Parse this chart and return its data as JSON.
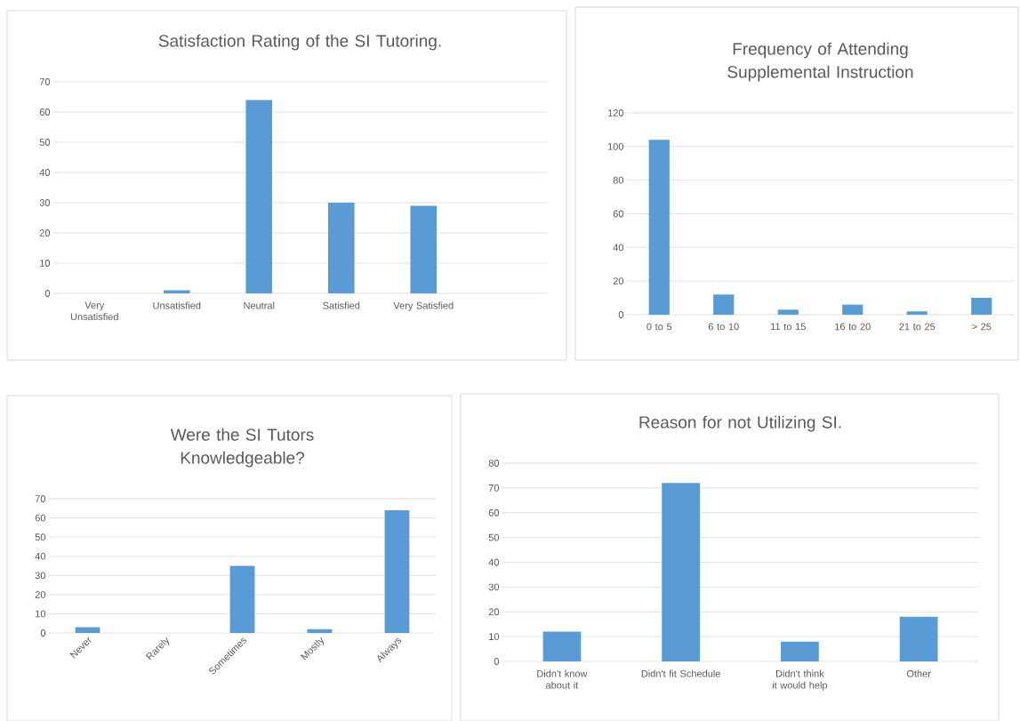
{
  "chart_data": [
    {
      "type": "bar",
      "title": "Satisfaction Rating of the SI Tutoring.",
      "categories": [
        "Very Unsatisfied",
        "Unsatisfied",
        "Neutral",
        "Satisfied",
        "Very Satisfied",
        null
      ],
      "values": [
        0,
        1,
        64,
        30,
        29,
        null
      ],
      "color": "#5b9bd5",
      "ylim": [
        0,
        70
      ],
      "yticks": [
        0,
        10,
        20,
        30,
        40,
        50,
        60,
        70
      ],
      "grid": "y"
    },
    {
      "type": "bar",
      "title": "Frequency of Attending Supplemental Instruction",
      "categories": [
        "0 to 5",
        "6 to 10",
        "11 to 15",
        "16 to 20",
        "21 to 25",
        "> 25"
      ],
      "values": [
        104,
        12,
        3,
        6,
        2,
        10
      ],
      "color": "#5b9bd5",
      "ylim": [
        0,
        120
      ],
      "yticks": [
        0,
        20,
        40,
        60,
        80,
        100,
        120
      ],
      "grid": "y"
    },
    {
      "type": "bar",
      "title": "Were the SI Tutors Knowledgeable?",
      "categories": [
        "Never",
        "Rarely",
        "Sometimes",
        "Mostly",
        "Always"
      ],
      "values": [
        3,
        0,
        35,
        2,
        64
      ],
      "color": "#5b9bd5",
      "ylim": [
        0,
        70
      ],
      "yticks": [
        0,
        10,
        20,
        30,
        40,
        50,
        60,
        70
      ],
      "grid": "y"
    },
    {
      "type": "bar",
      "title": "Reason for not Utilizing SI.",
      "categories": [
        "Didn't know about it",
        "Didn't fit Schedule",
        "Didn't think it would help",
        "Other"
      ],
      "values": [
        12,
        72,
        8,
        18
      ],
      "color": "#5b9bd5",
      "ylim": [
        0,
        80
      ],
      "yticks": [
        0,
        10,
        20,
        30,
        40,
        50,
        60,
        70,
        80
      ],
      "grid": "y"
    }
  ]
}
